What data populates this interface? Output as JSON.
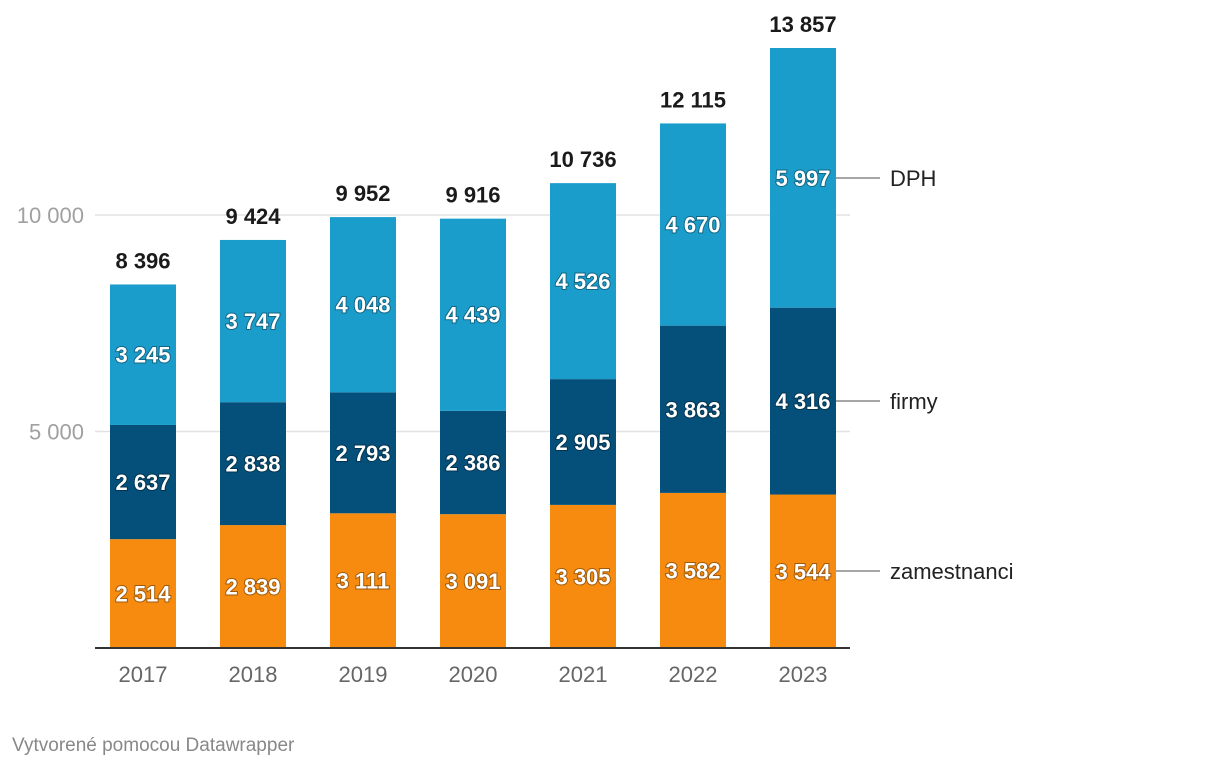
{
  "chart_data": {
    "type": "bar",
    "stacked": true,
    "categories": [
      "2017",
      "2018",
      "2019",
      "2020",
      "2021",
      "2022",
      "2023"
    ],
    "series": [
      {
        "name": "zamestnanci",
        "color": "#f68b0f",
        "values": [
          2514,
          2839,
          3111,
          3091,
          3305,
          3582,
          3544
        ],
        "value_labels": [
          "2 514",
          "2 839",
          "3 111",
          "3 091",
          "3 305",
          "3 582",
          "3 544"
        ]
      },
      {
        "name": "firmy",
        "color": "#04507a",
        "values": [
          2637,
          2838,
          2793,
          2386,
          2905,
          3863,
          4316
        ],
        "value_labels": [
          "2 637",
          "2 838",
          "2 793",
          "2 386",
          "2 905",
          "3 863",
          "4 316"
        ]
      },
      {
        "name": "DPH",
        "color": "#1b9dcc",
        "values": [
          3245,
          3747,
          4048,
          4439,
          4526,
          4670,
          5997
        ],
        "value_labels": [
          "3 245",
          "3 747",
          "4 048",
          "4 439",
          "4 526",
          "4 670",
          "5 997"
        ]
      }
    ],
    "totals": [
      8396,
      9424,
      9952,
      9916,
      10736,
      12115,
      13857
    ],
    "total_labels": [
      "8 396",
      "9 424",
      "9 952",
      "9 916",
      "10 736",
      "12 115",
      "13 857"
    ],
    "y_ticks": [
      5000,
      10000
    ],
    "y_tick_labels": [
      "5 000",
      "10 000"
    ],
    "ylim": [
      0,
      13857
    ],
    "grid": true,
    "legend": "inline-right",
    "title": "",
    "xlabel": "",
    "ylabel": ""
  },
  "footer": "Vytvorené pomocou Datawrapper"
}
